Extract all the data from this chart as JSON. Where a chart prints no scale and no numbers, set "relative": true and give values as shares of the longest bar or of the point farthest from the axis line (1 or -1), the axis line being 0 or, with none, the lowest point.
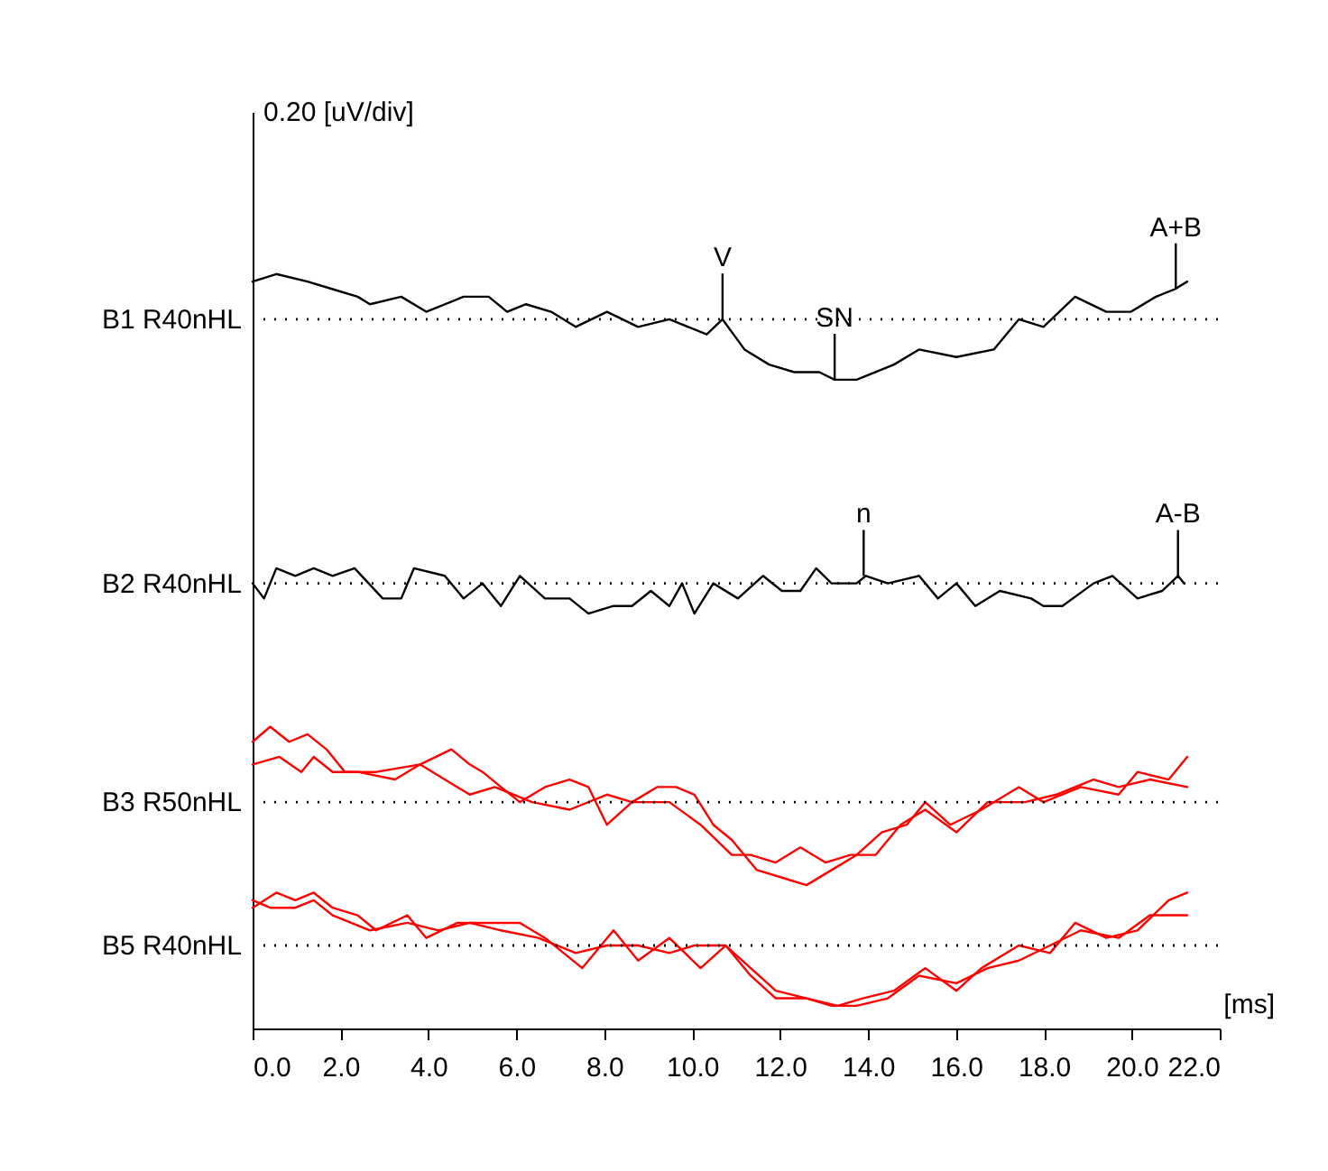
{
  "chart_data": {
    "type": "line",
    "relative": true,
    "xlabel": "[ms]",
    "xlim": [
      0,
      22
    ],
    "xticks": [
      {
        "value": 0,
        "label": "0.0"
      },
      {
        "value": 2,
        "label": "2.0"
      },
      {
        "value": 4,
        "label": "4.0"
      },
      {
        "value": 6,
        "label": "6.0"
      },
      {
        "value": 8,
        "label": "8.0"
      },
      {
        "value": 10,
        "label": "10.0"
      },
      {
        "value": 12,
        "label": "12.0"
      },
      {
        "value": 14,
        "label": "14.0"
      },
      {
        "value": 16,
        "label": "16.0"
      },
      {
        "value": 18,
        "label": "18.0"
      },
      {
        "value": 20,
        "label": "20.0"
      },
      {
        "value": 22,
        "label": "22.0"
      }
    ],
    "series": [
      {
        "color": "#000000",
        "x": [
          0,
          0.54,
          1.25,
          1.82,
          2.39,
          2.67,
          3.38,
          3.95,
          4.8,
          5.37,
          5.79,
          6.22,
          6.79,
          7.35,
          8.06,
          8.77,
          9.48,
          10.33,
          10.69,
          11.19,
          11.75,
          12.32,
          12.89,
          13.24,
          13.74,
          14.59,
          15.16,
          16.01,
          16.86,
          17.43,
          17.99,
          18.71,
          19.42,
          19.98,
          20.55,
          20.98,
          21.26
        ],
        "values": [
          0.99,
          1.0,
          0.99,
          0.98,
          0.97,
          0.96,
          0.97,
          0.95,
          0.97,
          0.97,
          0.95,
          0.96,
          0.95,
          0.93,
          0.95,
          0.93,
          0.94,
          0.92,
          0.94,
          0.9,
          0.88,
          0.87,
          0.87,
          0.86,
          0.86,
          0.88,
          0.9,
          0.89,
          0.9,
          0.94,
          0.93,
          0.97,
          0.95,
          0.95,
          0.97,
          0.98,
          0.99
        ]
      },
      {
        "color": "#000000",
        "x": [
          0,
          0.26,
          0.54,
          0.97,
          1.39,
          1.82,
          2.32,
          2.96,
          3.38,
          3.67,
          4.37,
          4.8,
          5.23,
          5.65,
          6.08,
          6.65,
          7.21,
          7.64,
          8.21,
          8.63,
          9.06,
          9.48,
          9.77,
          10.05,
          10.48,
          11.04,
          11.61,
          12.04,
          12.46,
          12.82,
          13.17,
          13.74,
          13.95,
          14.45,
          15.16,
          15.59,
          16.01,
          16.44,
          17.0,
          17.71,
          17.99,
          18.42,
          19.13,
          19.56,
          20.13,
          20.69,
          21.05,
          21.19
        ],
        "values": [
          0.59,
          0.57,
          0.61,
          0.6,
          0.61,
          0.6,
          0.61,
          0.57,
          0.57,
          0.61,
          0.6,
          0.57,
          0.59,
          0.56,
          0.6,
          0.57,
          0.57,
          0.55,
          0.56,
          0.56,
          0.58,
          0.56,
          0.59,
          0.55,
          0.59,
          0.57,
          0.6,
          0.58,
          0.58,
          0.61,
          0.59,
          0.59,
          0.6,
          0.59,
          0.6,
          0.57,
          0.59,
          0.56,
          0.58,
          0.57,
          0.56,
          0.56,
          0.59,
          0.6,
          0.57,
          0.58,
          0.6,
          0.59
        ]
      },
      {
        "color": "#ff0000",
        "x": [
          0,
          0.4,
          0.83,
          1.25,
          1.68,
          2.1,
          2.81,
          3.81,
          4.52,
          4.94,
          5.23,
          5.65,
          6.08,
          6.65,
          7.21,
          7.64,
          8.06,
          8.63,
          9.2,
          9.63,
          10.05,
          10.48,
          10.9,
          11.47,
          12.04,
          12.6,
          13.17,
          13.74,
          14.31,
          14.88,
          15.3,
          15.87,
          16.58,
          17.43,
          17.99,
          18.84,
          19.7,
          20.13,
          20.84,
          21.26
        ],
        "values": [
          0.38,
          0.4,
          0.38,
          0.39,
          0.37,
          0.34,
          0.34,
          0.35,
          0.37,
          0.35,
          0.34,
          0.32,
          0.3,
          0.32,
          0.33,
          0.32,
          0.27,
          0.3,
          0.32,
          0.32,
          0.31,
          0.27,
          0.25,
          0.21,
          0.2,
          0.19,
          0.21,
          0.23,
          0.26,
          0.27,
          0.3,
          0.27,
          0.29,
          0.32,
          0.3,
          0.32,
          0.31,
          0.34,
          0.33,
          0.36
        ]
      },
      {
        "color": "#ff0000",
        "x": [
          0,
          0.61,
          1.11,
          1.39,
          1.82,
          2.39,
          3.24,
          3.81,
          4.37,
          4.94,
          5.51,
          6.36,
          7.21,
          8.06,
          8.63,
          9.48,
          10.19,
          10.9,
          11.33,
          11.9,
          12.46,
          13.03,
          13.6,
          14.17,
          14.74,
          15.3,
          16.01,
          16.72,
          17.57,
          18.28,
          19.13,
          19.7,
          20.41,
          21.26
        ],
        "values": [
          0.35,
          0.36,
          0.34,
          0.36,
          0.34,
          0.34,
          0.33,
          0.35,
          0.33,
          0.31,
          0.32,
          0.3,
          0.29,
          0.31,
          0.3,
          0.3,
          0.27,
          0.23,
          0.23,
          0.22,
          0.24,
          0.22,
          0.23,
          0.23,
          0.27,
          0.29,
          0.26,
          0.3,
          0.3,
          0.31,
          0.33,
          0.32,
          0.33,
          0.32
        ]
      },
      {
        "color": "#ff0000",
        "x": [
          0,
          0.54,
          0.97,
          1.39,
          1.82,
          2.39,
          2.81,
          3.52,
          3.95,
          4.66,
          5.37,
          6.08,
          6.65,
          7.5,
          8.21,
          8.77,
          9.48,
          10.19,
          10.76,
          11.33,
          11.9,
          12.6,
          13.31,
          13.88,
          14.59,
          15.3,
          16.01,
          16.58,
          17.43,
          18.14,
          18.71,
          19.42,
          20.13,
          20.84,
          21.26
        ],
        "values": [
          0.16,
          0.18,
          0.17,
          0.18,
          0.16,
          0.15,
          0.13,
          0.15,
          0.12,
          0.14,
          0.14,
          0.14,
          0.12,
          0.08,
          0.13,
          0.09,
          0.12,
          0.08,
          0.11,
          0.07,
          0.04,
          0.04,
          0.03,
          0.04,
          0.05,
          0.08,
          0.05,
          0.08,
          0.11,
          0.1,
          0.14,
          0.12,
          0.13,
          0.17,
          0.18
        ]
      },
      {
        "color": "#ff0000",
        "x": [
          0,
          0.4,
          0.97,
          1.39,
          1.82,
          2.67,
          3.52,
          4.23,
          4.94,
          5.65,
          6.5,
          7.35,
          8.06,
          8.77,
          9.48,
          10.05,
          10.76,
          11.33,
          11.9,
          12.6,
          13.17,
          13.74,
          14.45,
          15.16,
          16.01,
          16.72,
          17.43,
          18.14,
          18.84,
          19.7,
          20.41,
          21.26
        ],
        "values": [
          0.17,
          0.16,
          0.16,
          0.17,
          0.15,
          0.13,
          0.14,
          0.13,
          0.14,
          0.13,
          0.12,
          0.1,
          0.11,
          0.11,
          0.1,
          0.11,
          0.11,
          0.08,
          0.05,
          0.04,
          0.03,
          0.03,
          0.04,
          0.07,
          0.06,
          0.08,
          0.09,
          0.11,
          0.13,
          0.12,
          0.15,
          0.15
        ]
      }
    ],
    "ref_lines": [
      {
        "axis": "y",
        "value": 0.94,
        "label": "B1 R40nHL",
        "line_style": "dotted",
        "color": "#000000"
      },
      {
        "axis": "y",
        "value": 0.59,
        "label": "B2 R40nHL",
        "line_style": "dotted",
        "color": "#000000"
      },
      {
        "axis": "y",
        "value": 0.3,
        "label": "B3 R50nHL",
        "line_style": "dotted",
        "color": "#000000"
      },
      {
        "axis": "y",
        "value": 0.11,
        "label": "B5 R40nHL",
        "line_style": "dotted",
        "color": "#000000"
      }
    ],
    "annotations": [
      "0.20 [uV/div]",
      {
        "text": "V",
        "x": 10.69,
        "y": 0.94
      },
      {
        "text": "SN",
        "x": 13.24,
        "y": 0.86
      },
      {
        "text": "A+B",
        "x": 21.0,
        "y": 0.98
      },
      {
        "text": "n",
        "x": 13.9,
        "y": 0.6
      },
      {
        "text": "A-B",
        "x": 21.05,
        "y": 0.6
      }
    ]
  }
}
